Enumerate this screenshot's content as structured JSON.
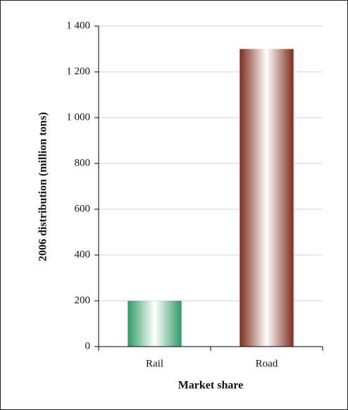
{
  "chart_data": {
    "type": "bar",
    "x_label": "Market share",
    "y_label": "2006 distribution (million tons)",
    "categories": [
      "Rail",
      "Road"
    ],
    "values": [
      200,
      1300
    ],
    "colors": [
      "#2e9a68",
      "#7e2c1c"
    ],
    "ylim": [
      0,
      1400
    ],
    "yticks": [
      0,
      200,
      400,
      600,
      800,
      {
        "value": 1000,
        "label": "1 000"
      },
      {
        "value": 1200,
        "label": "1 200"
      },
      {
        "value": 1400,
        "label": "1 400"
      }
    ],
    "grid": true
  }
}
